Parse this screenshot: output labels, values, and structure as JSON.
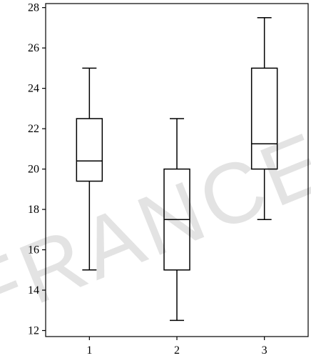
{
  "watermark": "FRANCE",
  "chart_data": {
    "type": "boxplot",
    "title": "",
    "xlabel": "",
    "ylabel": "",
    "categories": [
      "1",
      "2",
      "3"
    ],
    "boxes": [
      {
        "category": "1",
        "whisker_low": 15,
        "q1": 19.4,
        "median": 20.4,
        "q3": 22.5,
        "whisker_high": 25
      },
      {
        "category": "2",
        "whisker_low": 12.5,
        "q1": 15,
        "median": 17.5,
        "q3": 20,
        "whisker_high": 22.5
      },
      {
        "category": "3",
        "whisker_low": 17.5,
        "q1": 20,
        "median": 21.25,
        "q3": 25,
        "whisker_high": 27.5
      }
    ],
    "yticks": [
      12,
      14,
      16,
      18,
      20,
      22,
      24,
      26,
      28
    ],
    "ylim": [
      11.7,
      28.2
    ],
    "grid": false,
    "colors": {
      "stroke": "#000000",
      "background": "#ffffff",
      "watermark": "#e3e3e3"
    }
  }
}
